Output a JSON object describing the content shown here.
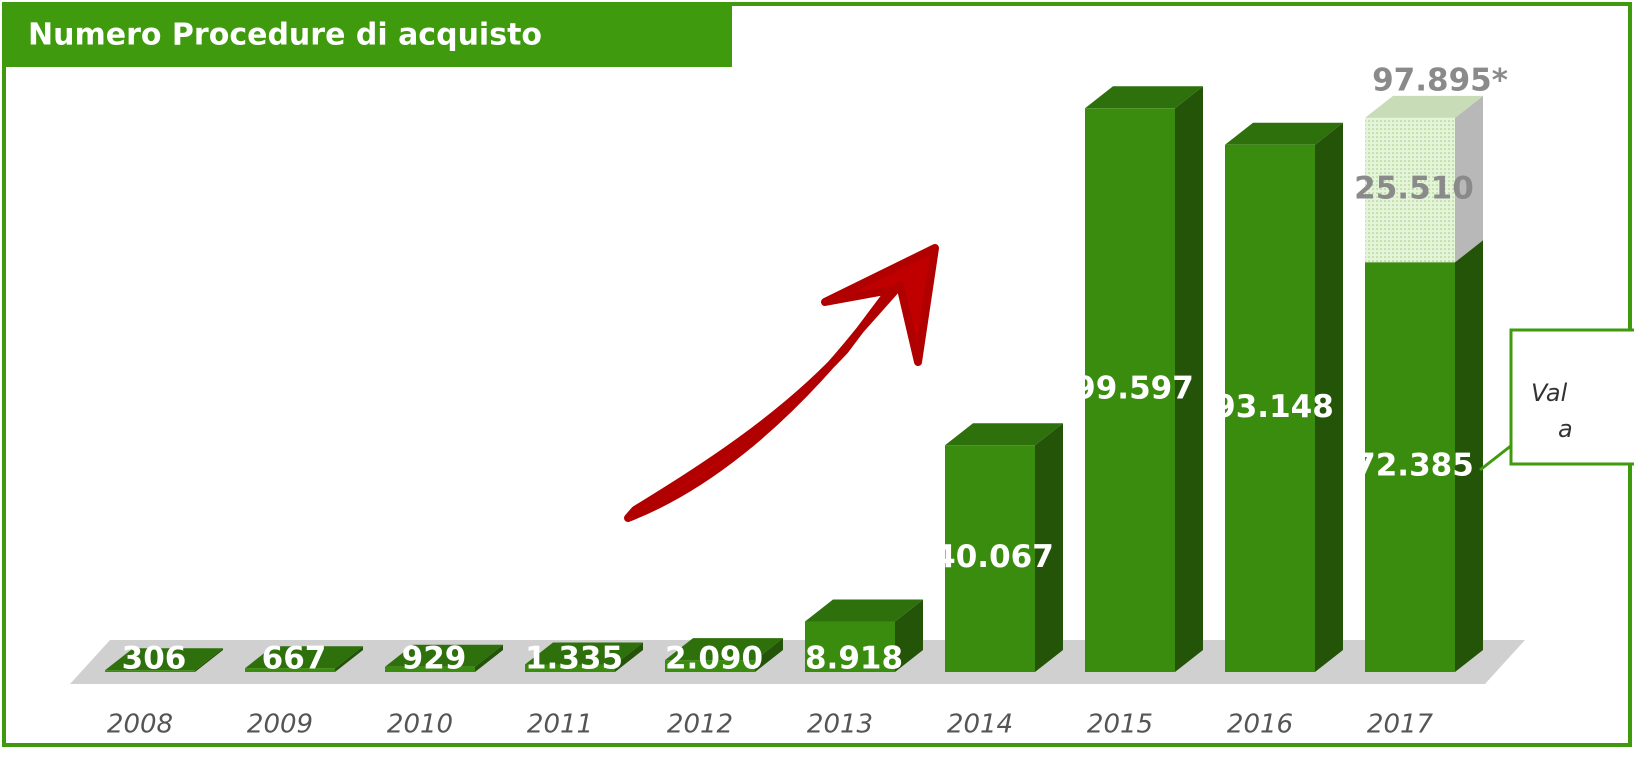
{
  "chart_data": {
    "type": "bar3d",
    "title": "Numero Procedure di acquisto",
    "categories": [
      "2008",
      "2009",
      "2010",
      "2011",
      "2012",
      "2013",
      "2014",
      "2015",
      "2016",
      "2017"
    ],
    "series": [
      {
        "color": "#3a8c0e",
        "values": [
          306,
          667,
          929,
          1335,
          2090,
          8918,
          40067,
          99597,
          93148,
          72385
        ],
        "value_labels": [
          "306",
          "667",
          "929",
          "1.335",
          "2.090",
          "8.918",
          "40.067",
          "99.597",
          "93.148",
          "72.385"
        ]
      },
      {
        "color": "#d6edc4",
        "values": [
          null,
          null,
          null,
          null,
          null,
          null,
          null,
          null,
          null,
          25510
        ],
        "value_labels": [
          null,
          null,
          null,
          null,
          null,
          null,
          null,
          null,
          null,
          "25.510"
        ]
      }
    ],
    "total": {
      "value": 97895,
      "label": "97.895*"
    },
    "callout": [
      "Val",
      "a"
    ],
    "ylim": [
      0,
      100000
    ]
  }
}
